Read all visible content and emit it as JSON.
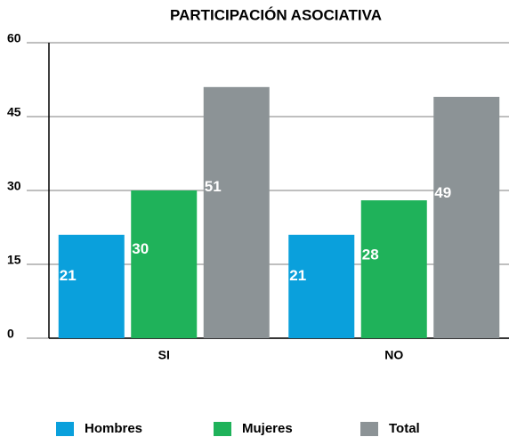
{
  "chart_data": {
    "type": "bar",
    "title": "PARTICIPACIÓN ASOCIATIVA",
    "categories": [
      "SI",
      "NO"
    ],
    "series": [
      {
        "name": "Hombres",
        "color": "#0aa0dc",
        "values": [
          21,
          21
        ]
      },
      {
        "name": "Mujeres",
        "color": "#1fb25a",
        "values": [
          30,
          28
        ]
      },
      {
        "name": "Total",
        "color": "#8c9396",
        "values": [
          51,
          49
        ]
      }
    ],
    "ylim": [
      0,
      60
    ],
    "yticks": [
      0,
      15,
      30,
      45,
      60
    ],
    "grid": true,
    "legend": "bottom"
  }
}
